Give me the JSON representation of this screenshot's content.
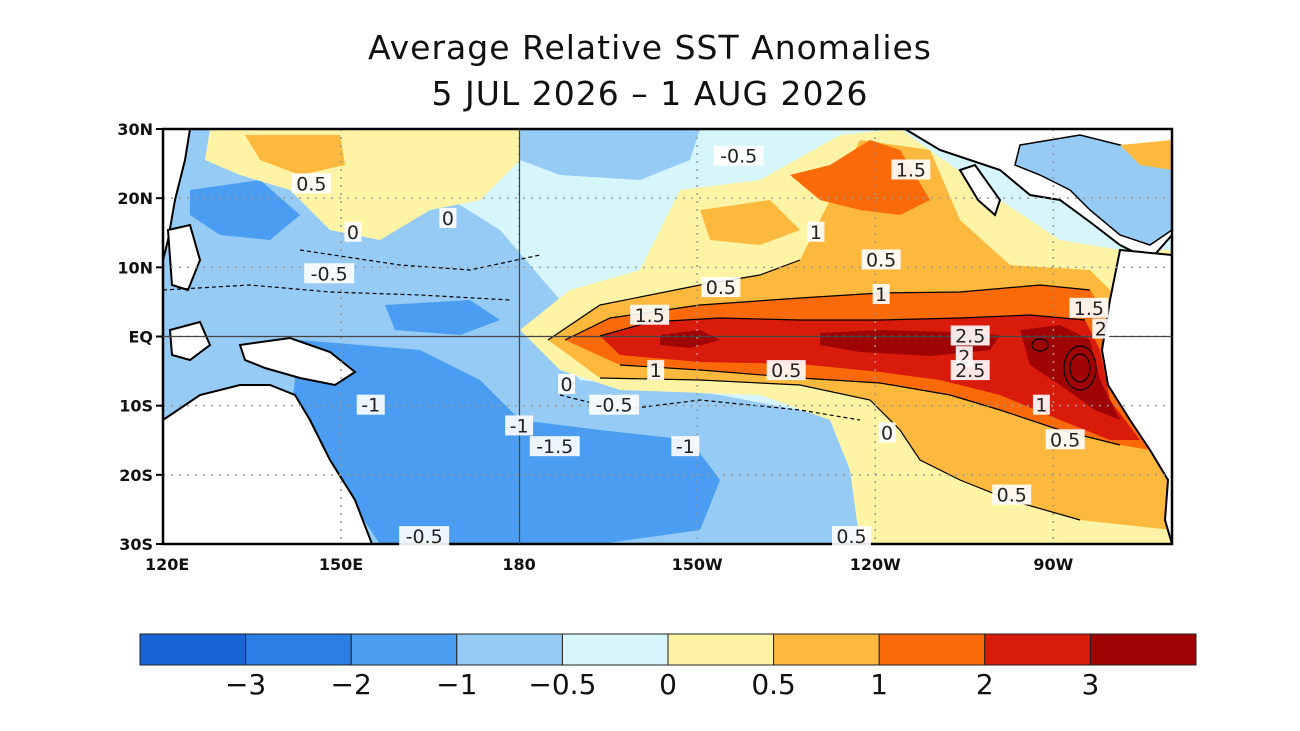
{
  "title": "Average Relative SST Anomalies",
  "subtitle": "5 JUL 2026 – 1 AUG 2026",
  "map": {
    "lon_ticks": [
      "120E",
      "150E",
      "180",
      "150W",
      "120W",
      "90W"
    ],
    "lat_ticks": [
      "30N",
      "20N",
      "10N",
      "EQ",
      "10S",
      "20S",
      "30S"
    ],
    "lon_range": [
      120,
      290
    ],
    "lat_range": [
      -30,
      30
    ],
    "land_color": "#ffffff",
    "contour_labels": [
      {
        "text": "0.5",
        "lon": 145,
        "lat": 22
      },
      {
        "text": "0",
        "lon": 152,
        "lat": 15
      },
      {
        "text": "0",
        "lon": 168,
        "lat": 17
      },
      {
        "text": "-0.5",
        "lon": 148,
        "lat": 9
      },
      {
        "text": "-0.5",
        "lon": 217,
        "lat": 26
      },
      {
        "text": "1.5",
        "lon": 246,
        "lat": 24
      },
      {
        "text": "1",
        "lon": 230,
        "lat": 15
      },
      {
        "text": "0.5",
        "lon": 241,
        "lat": 11
      },
      {
        "text": "0.5",
        "lon": 214,
        "lat": 7
      },
      {
        "text": "1",
        "lon": 241,
        "lat": 6
      },
      {
        "text": "1.5",
        "lon": 202,
        "lat": 3
      },
      {
        "text": "1.5",
        "lon": 276,
        "lat": 4
      },
      {
        "text": "2",
        "lon": 278,
        "lat": 1
      },
      {
        "text": "2.5",
        "lon": 256,
        "lat": 0
      },
      {
        "text": "2",
        "lon": 255,
        "lat": -3
      },
      {
        "text": "2.5",
        "lon": 256,
        "lat": -5
      },
      {
        "text": "1",
        "lon": 203,
        "lat": -5
      },
      {
        "text": "0.5",
        "lon": 225,
        "lat": -5
      },
      {
        "text": "0",
        "lon": 188,
        "lat": -7
      },
      {
        "text": "-0.5",
        "lon": 196,
        "lat": -10
      },
      {
        "text": "-1",
        "lon": 155,
        "lat": -10
      },
      {
        "text": "-1",
        "lon": 180,
        "lat": -13
      },
      {
        "text": "-1.5",
        "lon": 186,
        "lat": -16
      },
      {
        "text": "-1",
        "lon": 208,
        "lat": -16
      },
      {
        "text": "0",
        "lon": 242,
        "lat": -14
      },
      {
        "text": "1",
        "lon": 268,
        "lat": -10
      },
      {
        "text": "0.5",
        "lon": 272,
        "lat": -15
      },
      {
        "text": "0.5",
        "lon": 263,
        "lat": -23
      },
      {
        "text": "-0.5",
        "lon": 164,
        "lat": -29
      },
      {
        "text": "0.5",
        "lon": 236,
        "lat": -29
      }
    ]
  },
  "colorbar": {
    "colors": [
      "#1764d4",
      "#2a7fe6",
      "#4a9df0",
      "#96cbf6",
      "#d6f6fb",
      "#fff4a6",
      "#fdb93e",
      "#fb6a08",
      "#d91b0c",
      "#a00303"
    ],
    "labels": [
      "−3",
      "−2",
      "−1",
      "−0.5",
      "0",
      "0.5",
      "1",
      "2",
      "3"
    ]
  }
}
